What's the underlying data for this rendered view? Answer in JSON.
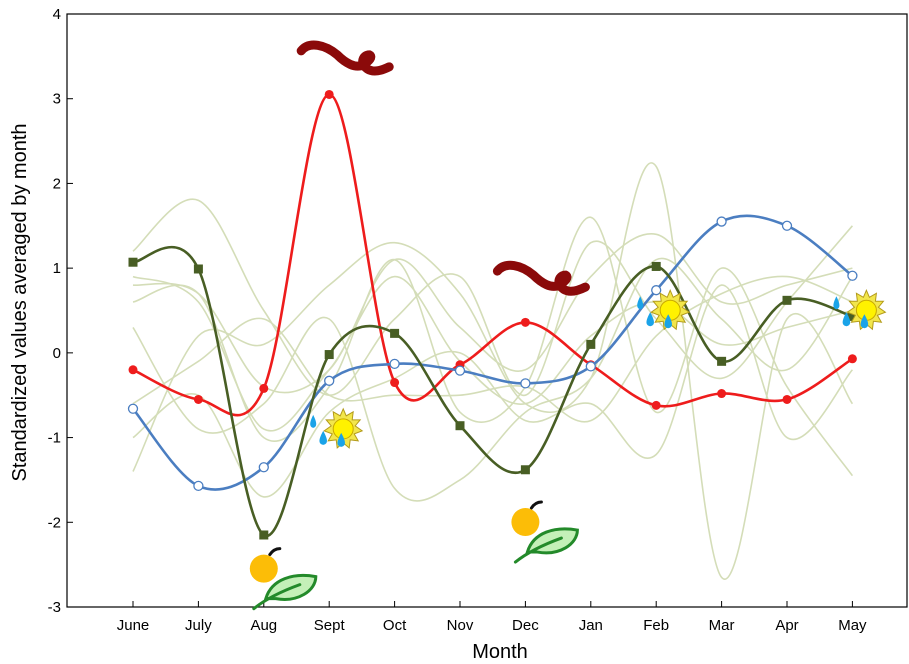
{
  "chart_data": {
    "type": "line",
    "title": "",
    "xlabel": "Month",
    "ylabel": "Standardized values averaged by month",
    "categories": [
      "June",
      "July",
      "Aug",
      "Sept",
      "Oct",
      "Nov",
      "Dec",
      "Jan",
      "Feb",
      "Mar",
      "Apr",
      "May"
    ],
    "ylim": [
      -3,
      4
    ],
    "yticks": [
      -3,
      -2,
      -1,
      0,
      1,
      2,
      3,
      4
    ],
    "ytick_labels": [
      "-3",
      "-2",
      "-1",
      "0",
      "1",
      "2",
      "3",
      "4"
    ],
    "grid": false,
    "legend": "none",
    "series": [
      {
        "color": "#ee1c1c",
        "marker": "filled-circle",
        "values": [
          -0.2,
          -0.55,
          -0.42,
          3.05,
          -0.35,
          -0.14,
          0.36,
          -0.14,
          -0.62,
          -0.48,
          -0.55,
          -0.07
        ]
      },
      {
        "color": "#4b7ec1",
        "marker": "open-circle",
        "values": [
          -0.66,
          -1.57,
          -1.35,
          -0.33,
          -0.13,
          -0.21,
          -0.36,
          -0.16,
          0.74,
          1.55,
          1.5,
          0.91
        ]
      },
      {
        "color": "#485e24",
        "marker": "filled-square",
        "values": [
          1.07,
          0.99,
          -2.15,
          -0.02,
          0.23,
          -0.86,
          -1.38,
          0.1,
          1.02,
          -0.1,
          0.62,
          0.43
        ]
      }
    ],
    "background_series_color": "#d4ddb8",
    "background_series": [
      [
        0.8,
        0.7,
        -0.4,
        -0.2,
        1.1,
        0.3,
        -0.2,
        0.9,
        1.4,
        0.6,
        0.8,
        1.0
      ],
      [
        1.2,
        1.8,
        0.5,
        -0.5,
        0.4,
        0.9,
        -0.5,
        1.3,
        0.4,
        -0.3,
        0.6,
        1.5
      ],
      [
        -1.4,
        0.2,
        0.1,
        0.8,
        1.3,
        0.7,
        -0.6,
        -0.3,
        2.2,
        -2.65,
        0.4,
        -0.6
      ],
      [
        0.6,
        0.7,
        -1.0,
        -0.4,
        1.1,
        -0.7,
        -0.4,
        1.6,
        -0.7,
        1.0,
        -0.4,
        -1.45
      ],
      [
        0.3,
        -0.9,
        -0.6,
        0.4,
        -1.6,
        -1.5,
        -0.7,
        -0.3,
        1.1,
        0.4,
        -0.2,
        0.9
      ],
      [
        -0.6,
        -0.1,
        0.4,
        -0.5,
        -0.5,
        -0.5,
        -0.4,
        -0.8,
        0.2,
        0.7,
        0.9,
        0.6
      ],
      [
        0.9,
        0.6,
        -0.9,
        -0.2,
        0.9,
        -0.1,
        -0.6,
        0.2,
        0.6,
        0.1,
        0.3,
        0.5
      ],
      [
        -1.0,
        -0.5,
        -1.7,
        -0.7,
        -0.3,
        0.0,
        -0.8,
        -0.6,
        -1.2,
        0.8,
        -1.0,
        -0.2
      ]
    ],
    "annotations": [
      {
        "icon": "dust-storm-icon",
        "x": "Sept",
        "y": 3.4
      },
      {
        "icon": "dust-storm-icon",
        "x": "Dec",
        "y": 0.8
      },
      {
        "icon": "sun-and-rain-icon",
        "x": "Sept",
        "y": -0.85
      },
      {
        "icon": "sun-and-rain-icon",
        "x": "Feb",
        "y": 0.55
      },
      {
        "icon": "sun-and-rain-icon",
        "x": "May",
        "y": 0.55
      },
      {
        "icon": "fruit-and-leaf-icon",
        "x": "Aug",
        "y": -2.5
      },
      {
        "icon": "fruit-and-leaf-icon",
        "x": "Dec",
        "y": -1.95
      }
    ]
  }
}
